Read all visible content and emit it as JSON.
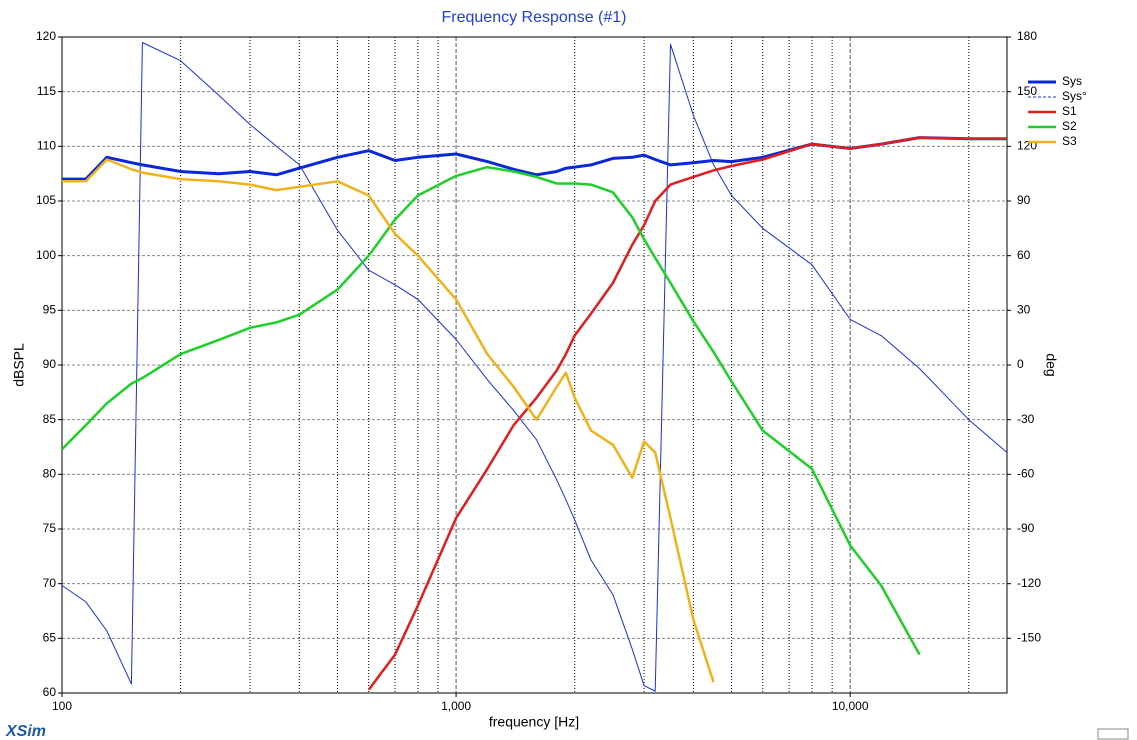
{
  "chart_data": {
    "type": "line",
    "title": "Frequency Response (#1)",
    "x_label": "frequency [Hz]",
    "y_label": "dBSPL",
    "y2_label": "deg",
    "footer": "XSim",
    "xlog": true,
    "grid": true,
    "x": [
      100,
      115,
      130,
      150,
      160,
      200,
      250,
      300,
      350,
      400,
      500,
      600,
      700,
      800,
      1000,
      1200,
      1400,
      1600,
      1800,
      1900,
      2000,
      2200,
      2500,
      2800,
      3000,
      3200,
      3500,
      4000,
      4500,
      5000,
      6000,
      8000,
      10000,
      12000,
      15000,
      20000,
      25000
    ],
    "xlim": [
      100,
      25000
    ],
    "xticks": [
      100,
      {
        "value": 1000,
        "label": "1,000"
      },
      {
        "value": 10000,
        "label": "10,000"
      }
    ],
    "xminorticks": [
      200,
      300,
      400,
      500,
      600,
      700,
      800,
      900,
      2000,
      3000,
      4000,
      5000,
      6000,
      7000,
      8000,
      9000,
      20000
    ],
    "ylim": [
      60,
      120
    ],
    "yticks": [
      60,
      65,
      70,
      75,
      80,
      85,
      90,
      95,
      100,
      105,
      110,
      115,
      120
    ],
    "y2lim": [
      -180,
      180
    ],
    "y2ticks": [
      180,
      150,
      120,
      90,
      60,
      30,
      0,
      -30,
      -60,
      -90,
      -120,
      -150
    ],
    "series": [
      {
        "name": "Sys",
        "color": "#0a28d8",
        "width": 3,
        "values": [
          107,
          107,
          109,
          108.5,
          108.3,
          107.7,
          107.5,
          107.7,
          107.4,
          108,
          109,
          109.6,
          108.7,
          109,
          109.3,
          108.6,
          107.9,
          107.4,
          107.7,
          108,
          108.1,
          108.3,
          108.9,
          109,
          109.2,
          108.8,
          108.3,
          108.5,
          108.7,
          108.6,
          109,
          110.2,
          109.8,
          110.2,
          110.8,
          110.7,
          110.7
        ]
      },
      {
        "name": "Sys°",
        "color": "#1a2fe0",
        "width": 1,
        "axis": "y2",
        "dashed": true,
        "values": [
          -121,
          -130,
          -146,
          -175,
          177,
          167,
          148,
          132,
          120,
          110,
          74,
          52,
          44,
          36,
          14,
          -8,
          -25,
          -41,
          -63,
          -74,
          -85,
          -107,
          -126,
          -156,
          -176,
          -179,
          176,
          137,
          110,
          93,
          75,
          55,
          25,
          16,
          -2,
          -30,
          -48
        ]
      },
      {
        "name": "S1",
        "color": "#e01e1e",
        "width": 2.5,
        "values": [
          null,
          null,
          null,
          null,
          null,
          null,
          null,
          null,
          null,
          null,
          null,
          60.3,
          63.5,
          68,
          76,
          80.5,
          84.5,
          87,
          89.5,
          91,
          92.7,
          94.7,
          97.5,
          101,
          102.8,
          105,
          106.5,
          107.2,
          107.8,
          108.2,
          108.8,
          110.2,
          109.8,
          110.2,
          110.8,
          110.7,
          110.7
        ]
      },
      {
        "name": "S2",
        "color": "#1ecf2a",
        "width": 2.5,
        "values": [
          82.3,
          84.5,
          86.5,
          88.3,
          88.8,
          91,
          92.3,
          93.4,
          93.9,
          94.6,
          96.9,
          100,
          103.3,
          105.5,
          107.3,
          108.1,
          107.7,
          107.2,
          106.6,
          106.6,
          106.6,
          106.5,
          105.8,
          103.5,
          101.5,
          99.8,
          97.5,
          94,
          91.2,
          88.5,
          84,
          80.5,
          73.5,
          69.8,
          63.5,
          null,
          null
        ]
      },
      {
        "name": "S3",
        "color": "#f0b21a",
        "width": 2.5,
        "values": [
          106.8,
          106.8,
          108.8,
          107.9,
          107.6,
          107,
          106.8,
          106.5,
          106,
          106.3,
          106.8,
          105.5,
          102,
          100,
          96,
          91,
          88,
          85,
          88,
          89.3,
          87,
          84,
          82.7,
          79.7,
          83,
          82,
          76,
          66.7,
          61,
          null,
          null,
          null,
          null,
          null,
          null,
          null,
          null
        ]
      }
    ]
  }
}
